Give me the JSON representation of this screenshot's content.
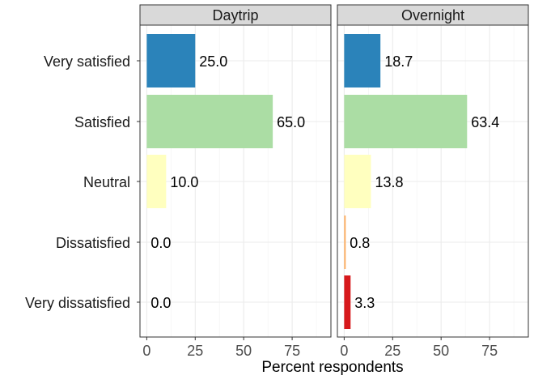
{
  "chart_data": {
    "type": "bar",
    "orientation": "horizontal",
    "categories": [
      "Very satisfied",
      "Satisfied",
      "Neutral",
      "Dissatisfied",
      "Very dissatisfied"
    ],
    "category_colors": [
      "#2b83ba",
      "#abdda4",
      "#ffffbf",
      "#fdae61",
      "#d7191c"
    ],
    "panels": [
      {
        "name": "Daytrip",
        "values": [
          25.0,
          65.0,
          10.0,
          0.0,
          0.0
        ],
        "labels": [
          "25.0",
          "65.0",
          "10.0",
          "0.0",
          "0.0"
        ]
      },
      {
        "name": "Overnight",
        "values": [
          18.7,
          63.4,
          13.8,
          0.8,
          3.3
        ],
        "labels": [
          "18.7",
          "63.4",
          "13.8",
          "0.8",
          "3.3"
        ]
      }
    ],
    "xlabel": "Percent respondents",
    "ylabel": "",
    "xlim": [
      -3.5,
      95
    ],
    "xticks": [
      0,
      25,
      50,
      75
    ],
    "xtick_labels": [
      "0",
      "25",
      "50",
      "75"
    ],
    "grid": true,
    "facet_strip_color": "#d9d9d9"
  }
}
